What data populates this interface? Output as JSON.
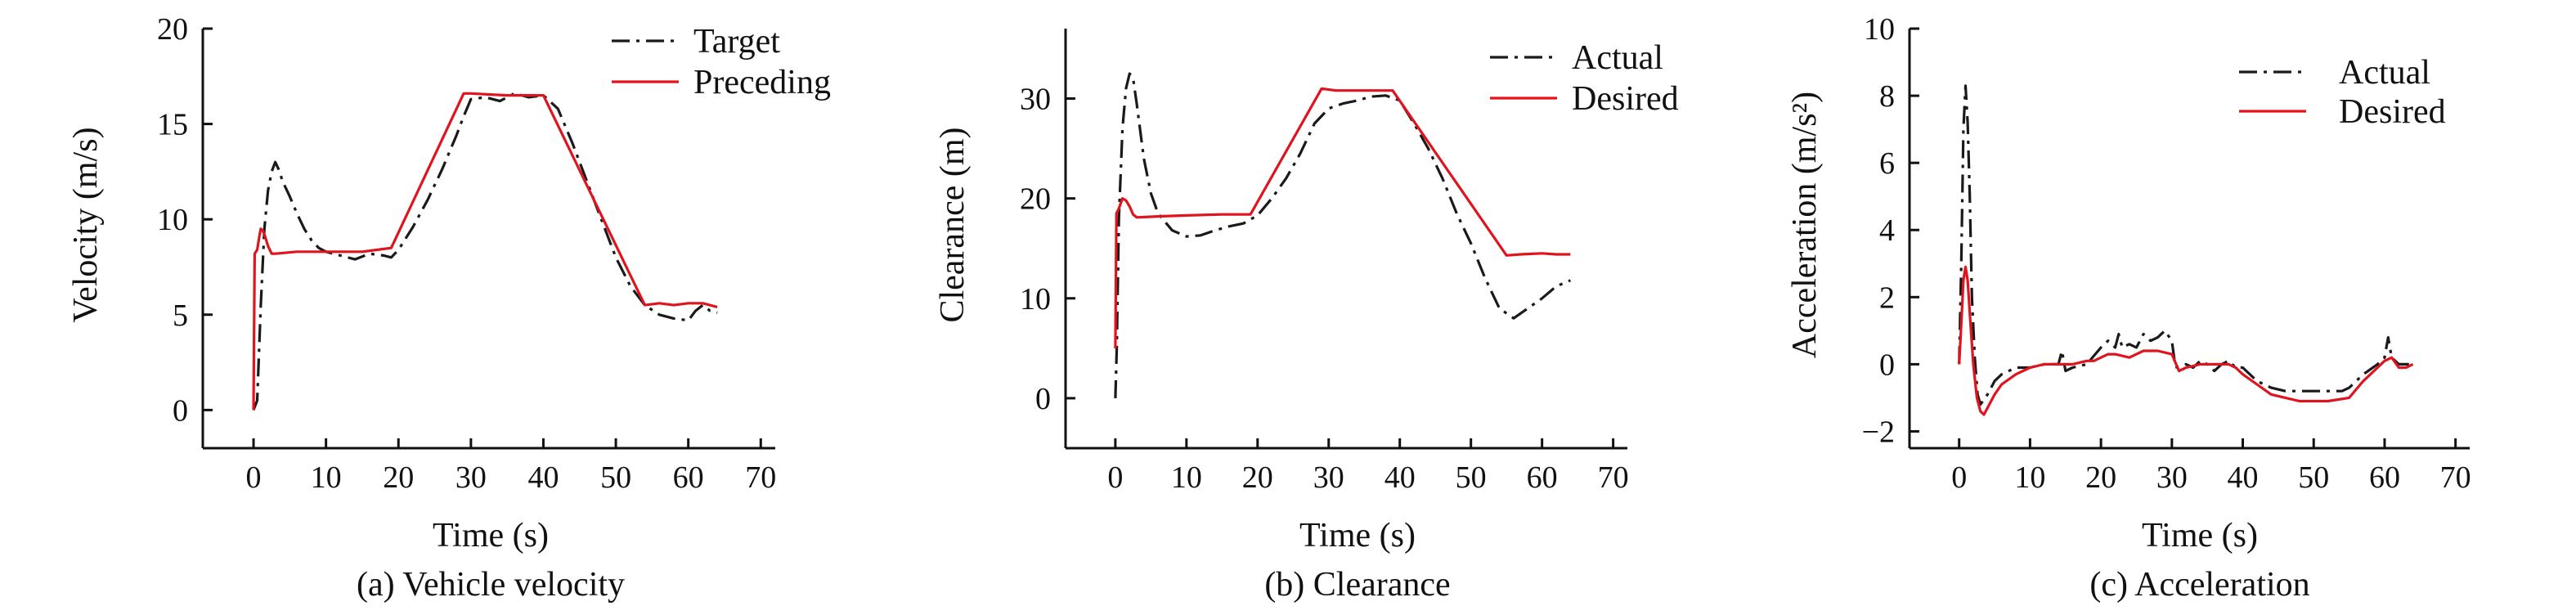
{
  "colors": {
    "target_actual": "#1a1a1a",
    "preceding_desired": "#e0141e",
    "axis": "#111111"
  },
  "chart_data": [
    {
      "type": "line",
      "caption": "(a) Vehicle velocity",
      "xlabel": "Time (s)",
      "ylabel": "Velocity (m/s)",
      "xlim": [
        -7,
        72
      ],
      "ylim": [
        -2,
        20
      ],
      "xticks": [
        0,
        10,
        20,
        30,
        40,
        50,
        60,
        70
      ],
      "yticks": [
        0,
        5,
        10,
        15,
        20
      ],
      "legend_position": "top-right",
      "series": [
        {
          "name": "Target",
          "style": "dashdot",
          "color": "#1a1a1a",
          "points": [
            [
              0,
              0
            ],
            [
              0.5,
              0.5
            ],
            [
              1,
              5.5
            ],
            [
              1.5,
              9.5
            ],
            [
              2,
              11.5
            ],
            [
              2.5,
              12.5
            ],
            [
              3,
              13
            ],
            [
              3.5,
              12.6
            ],
            [
              4,
              12
            ],
            [
              5,
              11.2
            ],
            [
              6,
              10.3
            ],
            [
              7,
              9.5
            ],
            [
              8,
              8.9
            ],
            [
              9,
              8.5
            ],
            [
              10,
              8.3
            ],
            [
              12,
              8.1
            ],
            [
              14,
              7.9
            ],
            [
              16,
              8.2
            ],
            [
              18,
              8.1
            ],
            [
              19,
              8.0
            ],
            [
              20,
              8.4
            ],
            [
              22,
              9.6
            ],
            [
              24,
              11.0
            ],
            [
              26,
              12.6
            ],
            [
              28,
              14.4
            ],
            [
              29,
              15.4
            ],
            [
              30,
              16.3
            ],
            [
              32,
              16.4
            ],
            [
              34,
              16.2
            ],
            [
              36,
              16.6
            ],
            [
              38,
              16.4
            ],
            [
              40,
              16.5
            ],
            [
              42,
              15.8
            ],
            [
              44,
              14.0
            ],
            [
              46,
              12.0
            ],
            [
              48,
              10.0
            ],
            [
              50,
              8.0
            ],
            [
              52,
              6.5
            ],
            [
              54,
              5.5
            ],
            [
              56,
              5.0
            ],
            [
              58,
              4.8
            ],
            [
              60,
              4.7
            ],
            [
              61,
              5.2
            ],
            [
              62,
              5.5
            ],
            [
              63,
              5.2
            ],
            [
              64,
              5.1
            ]
          ]
        },
        {
          "name": "Preceding",
          "style": "solid",
          "color": "#e0141e",
          "points": [
            [
              0,
              0
            ],
            [
              0.15,
              8.2
            ],
            [
              0.5,
              8.4
            ],
            [
              0.8,
              9.1
            ],
            [
              1,
              9.5
            ],
            [
              1.3,
              9.4
            ],
            [
              1.6,
              9.1
            ],
            [
              2,
              8.6
            ],
            [
              2.5,
              8.2
            ],
            [
              3,
              8.2
            ],
            [
              6,
              8.3
            ],
            [
              10,
              8.3
            ],
            [
              15,
              8.3
            ],
            [
              17,
              8.4
            ],
            [
              19,
              8.5
            ],
            [
              29,
              16.6
            ],
            [
              30,
              16.6
            ],
            [
              35,
              16.5
            ],
            [
              40,
              16.5
            ],
            [
              54,
              5.5
            ],
            [
              56,
              5.6
            ],
            [
              58,
              5.5
            ],
            [
              60,
              5.6
            ],
            [
              62,
              5.6
            ],
            [
              64,
              5.4
            ]
          ]
        }
      ]
    },
    {
      "type": "line",
      "caption": "(b) Clearance",
      "xlabel": "Time (s)",
      "ylabel": "Clearance (m)",
      "xlim": [
        -7,
        72
      ],
      "ylim": [
        -5,
        37
      ],
      "xticks": [
        0,
        10,
        20,
        30,
        40,
        50,
        60,
        70
      ],
      "yticks": [
        0,
        10,
        20,
        30
      ],
      "legend_position": "top-right",
      "series": [
        {
          "name": "Actual",
          "style": "dashdot",
          "color": "#1a1a1a",
          "points": [
            [
              0,
              0
            ],
            [
              0.2,
              5
            ],
            [
              0.5,
              18
            ],
            [
              1,
              27
            ],
            [
              1.5,
              31
            ],
            [
              2,
              32.5
            ],
            [
              2.5,
              32
            ],
            [
              3,
              29.5
            ],
            [
              4,
              24
            ],
            [
              5,
              20.5
            ],
            [
              6,
              18.5
            ],
            [
              8,
              16.8
            ],
            [
              10,
              16.2
            ],
            [
              12,
              16.3
            ],
            [
              14,
              16.8
            ],
            [
              16,
              17.2
            ],
            [
              18,
              17.5
            ],
            [
              20,
              18.3
            ],
            [
              22,
              20.0
            ],
            [
              24,
              22.0
            ],
            [
              26,
              24.5
            ],
            [
              28,
              27.5
            ],
            [
              30,
              29.0
            ],
            [
              32,
              29.5
            ],
            [
              34,
              29.8
            ],
            [
              36,
              30.2
            ],
            [
              38,
              30.3
            ],
            [
              40,
              29.8
            ],
            [
              42,
              27.5
            ],
            [
              44,
              25.0
            ],
            [
              46,
              22.0
            ],
            [
              48,
              18.5
            ],
            [
              50,
              15.5
            ],
            [
              52,
              12.0
            ],
            [
              54,
              9.0
            ],
            [
              56,
              8.0
            ],
            [
              58,
              9.0
            ],
            [
              60,
              10.0
            ],
            [
              62,
              11.2
            ],
            [
              64,
              11.8
            ]
          ]
        },
        {
          "name": "Desired",
          "style": "solid",
          "color": "#e0141e",
          "points": [
            [
              0,
              5
            ],
            [
              0.15,
              18.5
            ],
            [
              0.5,
              19.0
            ],
            [
              1,
              20.0
            ],
            [
              1.5,
              19.8
            ],
            [
              2,
              19.2
            ],
            [
              2.5,
              18.4
            ],
            [
              3,
              18.1
            ],
            [
              6,
              18.2
            ],
            [
              10,
              18.3
            ],
            [
              15,
              18.4
            ],
            [
              19,
              18.4
            ],
            [
              29,
              31.0
            ],
            [
              31,
              30.8
            ],
            [
              35,
              30.8
            ],
            [
              39,
              30.8
            ],
            [
              55,
              14.3
            ],
            [
              57,
              14.4
            ],
            [
              60,
              14.5
            ],
            [
              62,
              14.4
            ],
            [
              64,
              14.4
            ]
          ]
        }
      ]
    },
    {
      "type": "line",
      "caption": "(c) Acceleration",
      "xlabel": "Time (s)",
      "ylabel": "Acceleration (m/s²)",
      "xlim": [
        -7,
        72
      ],
      "ylim": [
        -2.5,
        10
      ],
      "xticks": [
        0,
        10,
        20,
        30,
        40,
        50,
        60,
        70
      ],
      "yticks": [
        -2,
        0,
        2,
        4,
        6,
        8,
        10
      ],
      "legend_position": "top-right",
      "series": [
        {
          "name": "Actual",
          "style": "dashdot",
          "color": "#1a1a1a",
          "points": [
            [
              0,
              0
            ],
            [
              0.3,
              3
            ],
            [
              0.6,
              7
            ],
            [
              0.9,
              8.3
            ],
            [
              1.2,
              7.2
            ],
            [
              1.5,
              5
            ],
            [
              1.8,
              2
            ],
            [
              2.2,
              0.2
            ],
            [
              2.6,
              -0.9
            ],
            [
              3,
              -1.2
            ],
            [
              4,
              -0.9
            ],
            [
              5,
              -0.5
            ],
            [
              6,
              -0.3
            ],
            [
              8,
              -0.1
            ],
            [
              10,
              -0.1
            ],
            [
              12,
              0
            ],
            [
              14,
              0
            ],
            [
              14.5,
              0.4
            ],
            [
              15,
              -0.2
            ],
            [
              16,
              -0.1
            ],
            [
              18,
              0
            ],
            [
              20,
              0.5
            ],
            [
              21,
              0.7
            ],
            [
              22,
              0.5
            ],
            [
              22.5,
              0.9
            ],
            [
              23,
              0.5
            ],
            [
              24,
              0.6
            ],
            [
              25,
              0.5
            ],
            [
              26,
              0.9
            ],
            [
              27,
              0.7
            ],
            [
              28,
              0.8
            ],
            [
              29,
              1.0
            ],
            [
              30,
              0.7
            ],
            [
              30.5,
              -0.1
            ],
            [
              32,
              0
            ],
            [
              33,
              -0.1
            ],
            [
              34,
              0.1
            ],
            [
              35,
              0
            ],
            [
              36,
              -0.2
            ],
            [
              37,
              0
            ],
            [
              38,
              0.1
            ],
            [
              39,
              -0.1
            ],
            [
              40,
              -0.1
            ],
            [
              42,
              -0.5
            ],
            [
              44,
              -0.7
            ],
            [
              46,
              -0.8
            ],
            [
              48,
              -0.8
            ],
            [
              50,
              -0.8
            ],
            [
              52,
              -0.8
            ],
            [
              54,
              -0.8
            ],
            [
              55,
              -0.7
            ],
            [
              57,
              -0.3
            ],
            [
              59,
              0
            ],
            [
              60,
              0.2
            ],
            [
              60.5,
              0.8
            ],
            [
              61,
              0.2
            ],
            [
              62,
              0
            ],
            [
              63,
              0
            ],
            [
              64,
              0
            ]
          ]
        },
        {
          "name": "Desired",
          "style": "solid",
          "color": "#e0141e",
          "points": [
            [
              0,
              0
            ],
            [
              0.3,
              1.2
            ],
            [
              0.6,
              2.5
            ],
            [
              0.9,
              2.9
            ],
            [
              1.2,
              2.5
            ],
            [
              1.6,
              1.2
            ],
            [
              2,
              0
            ],
            [
              2.5,
              -1.0
            ],
            [
              3,
              -1.4
            ],
            [
              3.5,
              -1.5
            ],
            [
              4,
              -1.3
            ],
            [
              5,
              -0.9
            ],
            [
              6,
              -0.6
            ],
            [
              8,
              -0.3
            ],
            [
              10,
              -0.1
            ],
            [
              12,
              0
            ],
            [
              14,
              0
            ],
            [
              16,
              0
            ],
            [
              18,
              0.1
            ],
            [
              19,
              0.1
            ],
            [
              20,
              0.2
            ],
            [
              21,
              0.3
            ],
            [
              22,
              0.3
            ],
            [
              24,
              0.2
            ],
            [
              25,
              0.3
            ],
            [
              26,
              0.4
            ],
            [
              28,
              0.4
            ],
            [
              30,
              0.3
            ],
            [
              31,
              -0.2
            ],
            [
              32,
              -0.1
            ],
            [
              34,
              0
            ],
            [
              36,
              0
            ],
            [
              38,
              0
            ],
            [
              39,
              -0.1
            ],
            [
              40,
              -0.3
            ],
            [
              42,
              -0.6
            ],
            [
              44,
              -0.9
            ],
            [
              46,
              -1.0
            ],
            [
              48,
              -1.1
            ],
            [
              50,
              -1.1
            ],
            [
              52,
              -1.1
            ],
            [
              55,
              -1.0
            ],
            [
              57,
              -0.5
            ],
            [
              59,
              -0.1
            ],
            [
              60,
              0.1
            ],
            [
              61,
              0.2
            ],
            [
              62,
              -0.1
            ],
            [
              63,
              -0.1
            ],
            [
              64,
              0
            ]
          ]
        }
      ]
    }
  ]
}
